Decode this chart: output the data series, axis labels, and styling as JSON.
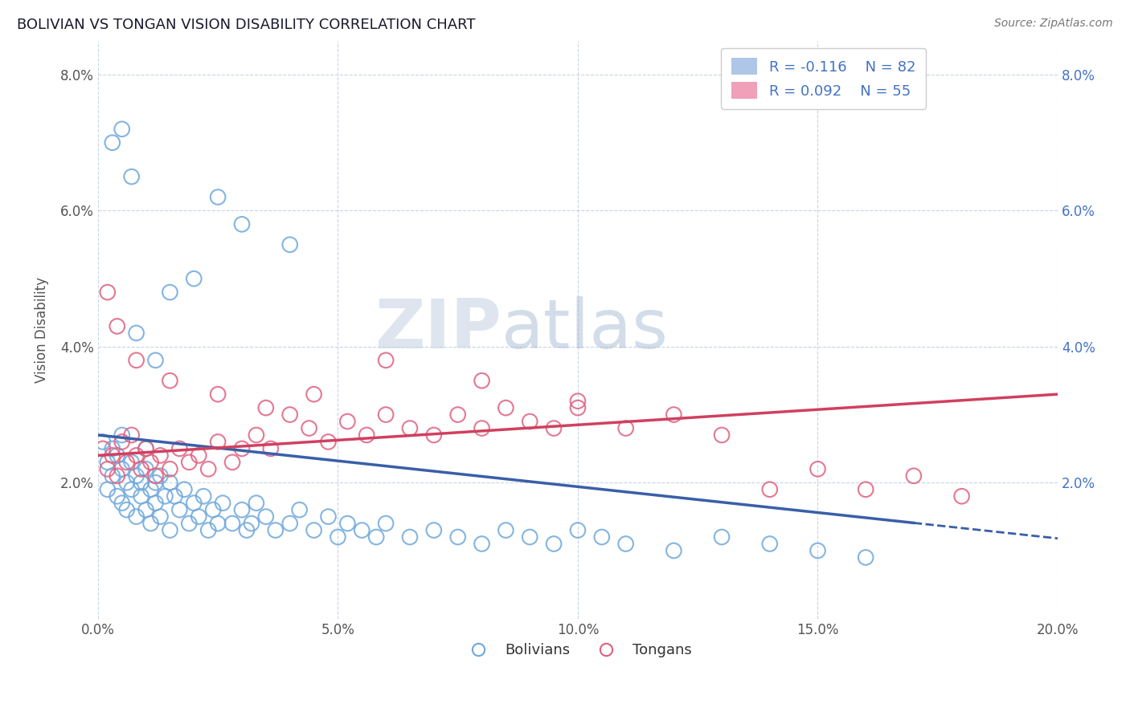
{
  "title": "BOLIVIAN VS TONGAN VISION DISABILITY CORRELATION CHART",
  "source": "Source: ZipAtlas.com",
  "ylabel": "Vision Disability",
  "xlabel": "",
  "xlim": [
    0.0,
    0.2
  ],
  "ylim": [
    0.0,
    0.085
  ],
  "xticks": [
    0.0,
    0.05,
    0.1,
    0.15,
    0.2
  ],
  "xticklabels": [
    "0.0%",
    "5.0%",
    "10.0%",
    "15.0%",
    "20.0%"
  ],
  "yticks": [
    0.0,
    0.02,
    0.04,
    0.06,
    0.08
  ],
  "yticklabels": [
    "",
    "2.0%",
    "4.0%",
    "6.0%",
    "8.0%"
  ],
  "bolivian_color": "#6fa8dc",
  "tongan_color": "#e06080",
  "bolivian_line_color": "#3a5fa8",
  "tongan_line_color": "#d04060",
  "legend_R_bolivian": "R = -0.116",
  "legend_N_bolivian": "N = 82",
  "legend_R_tongan": "R = 0.092",
  "legend_N_tongan": "N = 55",
  "bolivian_R": -0.116,
  "bolivian_N": 82,
  "tongan_R": 0.092,
  "tongan_N": 55,
  "background_color": "#ffffff",
  "grid_color": "#c8d4e8",
  "watermark_zip": "ZIP",
  "watermark_atlas": "atlas",
  "legend_labels": [
    "Bolivians",
    "Tongans"
  ],
  "bolivian_scatter_x": [
    0.001,
    0.002,
    0.002,
    0.003,
    0.003,
    0.004,
    0.004,
    0.005,
    0.005,
    0.005,
    0.006,
    0.006,
    0.007,
    0.007,
    0.008,
    0.008,
    0.009,
    0.009,
    0.01,
    0.01,
    0.01,
    0.011,
    0.011,
    0.012,
    0.012,
    0.013,
    0.013,
    0.014,
    0.015,
    0.015,
    0.016,
    0.017,
    0.018,
    0.019,
    0.02,
    0.021,
    0.022,
    0.023,
    0.024,
    0.025,
    0.026,
    0.028,
    0.03,
    0.031,
    0.032,
    0.033,
    0.035,
    0.037,
    0.04,
    0.042,
    0.045,
    0.048,
    0.05,
    0.052,
    0.055,
    0.058,
    0.06,
    0.065,
    0.07,
    0.075,
    0.08,
    0.085,
    0.09,
    0.095,
    0.1,
    0.105,
    0.11,
    0.12,
    0.13,
    0.14,
    0.15,
    0.16,
    0.003,
    0.005,
    0.007,
    0.025,
    0.03,
    0.04,
    0.02,
    0.015,
    0.008,
    0.012
  ],
  "bolivian_scatter_y": [
    0.026,
    0.023,
    0.019,
    0.025,
    0.021,
    0.024,
    0.018,
    0.022,
    0.017,
    0.027,
    0.02,
    0.016,
    0.023,
    0.019,
    0.021,
    0.015,
    0.02,
    0.018,
    0.022,
    0.016,
    0.025,
    0.019,
    0.014,
    0.02,
    0.017,
    0.021,
    0.015,
    0.018,
    0.02,
    0.013,
    0.018,
    0.016,
    0.019,
    0.014,
    0.017,
    0.015,
    0.018,
    0.013,
    0.016,
    0.014,
    0.017,
    0.014,
    0.016,
    0.013,
    0.014,
    0.017,
    0.015,
    0.013,
    0.014,
    0.016,
    0.013,
    0.015,
    0.012,
    0.014,
    0.013,
    0.012,
    0.014,
    0.012,
    0.013,
    0.012,
    0.011,
    0.013,
    0.012,
    0.011,
    0.013,
    0.012,
    0.011,
    0.01,
    0.012,
    0.011,
    0.01,
    0.009,
    0.07,
    0.072,
    0.065,
    0.062,
    0.058,
    0.055,
    0.05,
    0.048,
    0.042,
    0.038
  ],
  "tongan_scatter_x": [
    0.001,
    0.002,
    0.003,
    0.004,
    0.005,
    0.006,
    0.007,
    0.008,
    0.009,
    0.01,
    0.011,
    0.012,
    0.013,
    0.015,
    0.017,
    0.019,
    0.021,
    0.023,
    0.025,
    0.028,
    0.03,
    0.033,
    0.036,
    0.04,
    0.044,
    0.048,
    0.052,
    0.056,
    0.06,
    0.065,
    0.07,
    0.075,
    0.08,
    0.085,
    0.09,
    0.095,
    0.1,
    0.11,
    0.12,
    0.13,
    0.14,
    0.15,
    0.16,
    0.17,
    0.18,
    0.002,
    0.004,
    0.008,
    0.015,
    0.025,
    0.035,
    0.045,
    0.06,
    0.08,
    0.1
  ],
  "tongan_scatter_y": [
    0.025,
    0.022,
    0.024,
    0.021,
    0.026,
    0.023,
    0.027,
    0.024,
    0.022,
    0.025,
    0.023,
    0.021,
    0.024,
    0.022,
    0.025,
    0.023,
    0.024,
    0.022,
    0.026,
    0.023,
    0.025,
    0.027,
    0.025,
    0.03,
    0.028,
    0.026,
    0.029,
    0.027,
    0.03,
    0.028,
    0.027,
    0.03,
    0.028,
    0.031,
    0.029,
    0.028,
    0.031,
    0.028,
    0.03,
    0.027,
    0.019,
    0.022,
    0.019,
    0.021,
    0.018,
    0.048,
    0.043,
    0.038,
    0.035,
    0.033,
    0.031,
    0.033,
    0.038,
    0.035,
    0.032
  ]
}
